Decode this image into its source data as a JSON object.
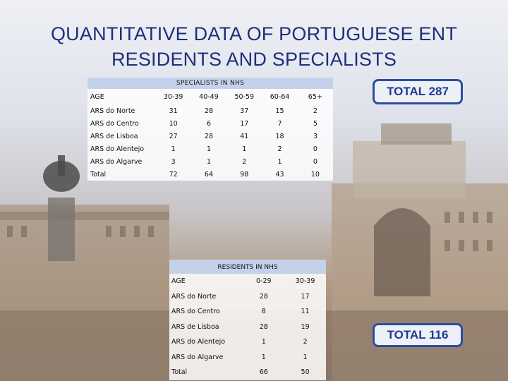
{
  "title": {
    "line1": "QUANTITATIVE DATA OF PORTUGUESE ENT",
    "line2": "RESIDENTS AND SPECIALISTS"
  },
  "specialists": {
    "caption": "SPECIALISTS IN NHS",
    "age_label": "AGE",
    "columns": [
      "30-39",
      "40-49",
      "50-59",
      "60-64",
      "65+"
    ],
    "rows": [
      {
        "label": "ARS do Norte",
        "values": [
          "31",
          "28",
          "37",
          "15",
          "2"
        ]
      },
      {
        "label": "ARS do Centro",
        "values": [
          "10",
          "6",
          "17",
          "7",
          "5"
        ]
      },
      {
        "label": "ARS de Lisboa",
        "values": [
          "27",
          "28",
          "41",
          "18",
          "3"
        ]
      },
      {
        "label": "ARS do Alentejo",
        "values": [
          "1",
          "1",
          "1",
          "2",
          "0"
        ]
      },
      {
        "label": "ARS do Algarve",
        "values": [
          "3",
          "1",
          "2",
          "1",
          "0"
        ]
      },
      {
        "label": "Total",
        "values": [
          "72",
          "64",
          "98",
          "43",
          "10"
        ]
      }
    ],
    "total": "TOTAL 287"
  },
  "residents": {
    "caption": "RESIDENTS IN NHS",
    "age_label": "AGE",
    "columns": [
      "0-29",
      "30-39"
    ],
    "rows": [
      {
        "label": "ARS do Norte",
        "values": [
          "28",
          "17"
        ]
      },
      {
        "label": "ARS do Centro",
        "values": [
          "8",
          "11"
        ]
      },
      {
        "label": "ARS de Lisboa",
        "values": [
          "28",
          "19"
        ]
      },
      {
        "label": "ARS do Alentejo",
        "values": [
          "1",
          "2"
        ]
      },
      {
        "label": "ARS do Algarve",
        "values": [
          "1",
          "1"
        ]
      },
      {
        "label": "Total",
        "values": [
          "66",
          "50"
        ]
      }
    ],
    "total": "TOTAL 116"
  },
  "colors": {
    "title": "#1f2f7a",
    "caption_bg": "#c3d2ea",
    "total_border": "#2b4ea0",
    "total_text": "#1d3b8f"
  }
}
